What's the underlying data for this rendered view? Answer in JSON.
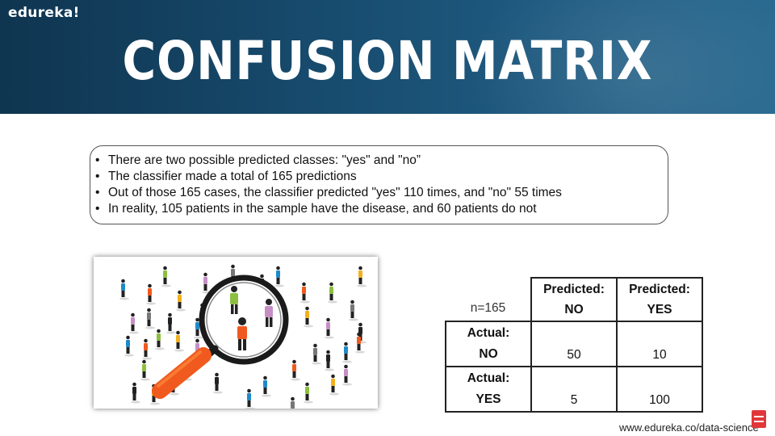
{
  "header": {
    "logo": "edureka!",
    "title": "CONFUSION MATRIX"
  },
  "bullets": [
    "There are two possible predicted classes: \"yes\" and \"no”",
    "The classifier made a total of 165 predictions",
    "Out of those 165 cases, the classifier predicted \"yes\" 110 times, and \"no\" 55 times",
    "In reality, 105 patients in the sample have the disease, and 60 patients do not"
  ],
  "matrix": {
    "corner": "n=165",
    "col_headers": [
      {
        "line1": "Predicted:",
        "line2": "NO"
      },
      {
        "line1": "Predicted:",
        "line2": "YES"
      }
    ],
    "rows": [
      {
        "line1": "Actual:",
        "line2": "NO",
        "values": [
          "50",
          "10"
        ]
      },
      {
        "line1": "Actual:",
        "line2": "YES",
        "values": [
          "5",
          "100"
        ]
      }
    ]
  },
  "footer": {
    "url": "www.edureka.co/data-science"
  },
  "image": {
    "icon": "magnifying-glass-crowd-illustration",
    "accent": "#f05a1e"
  },
  "colors": {
    "header_dark": "#0f3550",
    "header_light": "#2a6a90",
    "badge": "#e0383a"
  }
}
